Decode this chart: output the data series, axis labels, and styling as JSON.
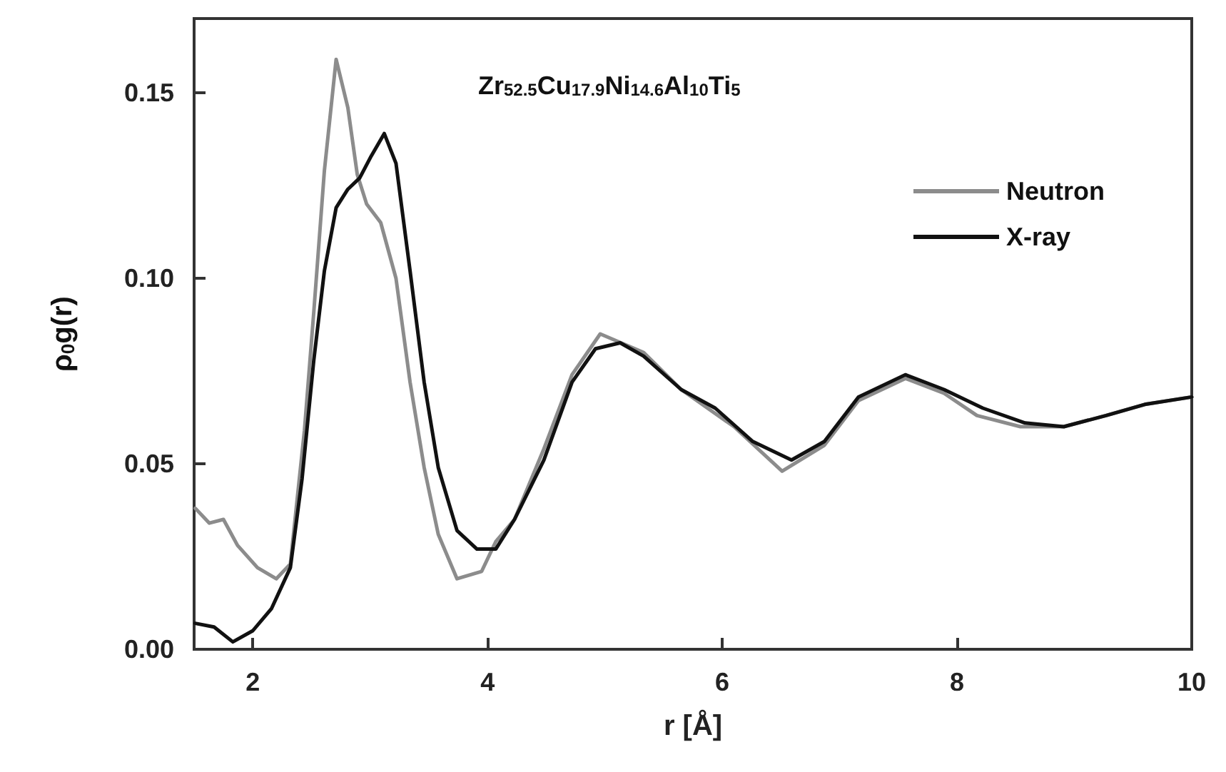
{
  "chart_data": {
    "type": "line",
    "title": "Zr$_{52.5}$Cu$_{17.9}$Ni$_{14.6}$Al$_{10}$Ti$_{5}$",
    "xlabel": "r [Å]",
    "ylabel": "ρ$_{0}$g(r)",
    "xlim": [
      1.5,
      10
    ],
    "xticks": [
      2,
      4,
      6,
      8,
      10
    ],
    "ylim": [
      0,
      0.17
    ],
    "yticks": [
      {
        "value": 0,
        "label": "0.00"
      },
      {
        "value": 0.05,
        "label": "0.05"
      },
      {
        "value": 0.1,
        "label": "0.10"
      },
      {
        "value": 0.15,
        "label": "0.15"
      }
    ],
    "grid": false,
    "legend": "top right",
    "marker": "none",
    "line_style": "solid",
    "series": [
      {
        "name": "Neutron",
        "color": "#8c8c8c",
        "x": [
          1.51,
          1.63,
          1.75,
          1.87,
          2.04,
          2.2,
          2.32,
          2.44,
          2.52,
          2.61,
          2.71,
          2.81,
          2.89,
          2.97,
          3.09,
          3.22,
          3.34,
          3.46,
          3.58,
          3.74,
          3.95,
          4.07,
          4.23,
          4.48,
          4.72,
          4.96,
          5.33,
          5.65,
          6.1,
          6.51,
          6.87,
          7.16,
          7.56,
          7.89,
          8.17,
          8.54,
          8.91,
          9.27,
          9.6,
          10.0
        ],
        "values": [
          0.038,
          0.034,
          0.035,
          0.028,
          0.022,
          0.019,
          0.023,
          0.059,
          0.091,
          0.129,
          0.159,
          0.146,
          0.128,
          0.12,
          0.115,
          0.1,
          0.072,
          0.049,
          0.031,
          0.019,
          0.021,
          0.029,
          0.035,
          0.054,
          0.074,
          0.085,
          0.08,
          0.07,
          0.06,
          0.048,
          0.055,
          0.067,
          0.073,
          0.069,
          0.063,
          0.06,
          0.06,
          0.063,
          0.066,
          0.068
        ]
      },
      {
        "name": "X-ray",
        "color": "#111111",
        "x": [
          1.51,
          1.67,
          1.83,
          2.0,
          2.16,
          2.32,
          2.42,
          2.52,
          2.61,
          2.71,
          2.81,
          2.91,
          3.01,
          3.12,
          3.22,
          3.34,
          3.46,
          3.58,
          3.74,
          3.91,
          4.07,
          4.23,
          4.48,
          4.72,
          4.92,
          5.13,
          5.33,
          5.65,
          5.94,
          6.26,
          6.59,
          6.87,
          7.16,
          7.56,
          7.89,
          8.22,
          8.58,
          8.91,
          9.27,
          9.6,
          10.0
        ],
        "values": [
          0.007,
          0.006,
          0.002,
          0.005,
          0.011,
          0.022,
          0.046,
          0.078,
          0.102,
          0.119,
          0.124,
          0.127,
          0.133,
          0.139,
          0.131,
          0.102,
          0.072,
          0.049,
          0.032,
          0.027,
          0.027,
          0.035,
          0.051,
          0.072,
          0.081,
          0.0826,
          0.079,
          0.07,
          0.065,
          0.056,
          0.051,
          0.056,
          0.068,
          0.074,
          0.07,
          0.065,
          0.061,
          0.06,
          0.063,
          0.066,
          0.068
        ]
      }
    ]
  }
}
